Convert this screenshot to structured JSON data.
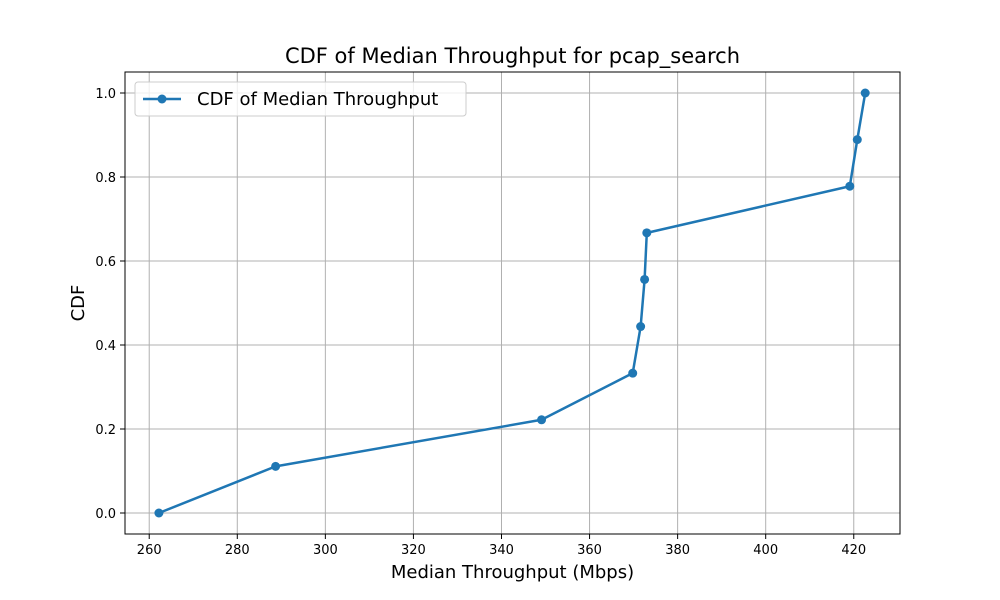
{
  "chart_data": {
    "type": "line",
    "title": "CDF of Median Throughput for pcap_search",
    "xlabel": "Median Throughput (Mbps)",
    "ylabel": "CDF",
    "xlim": [
      254.5,
      430.5
    ],
    "ylim": [
      -0.05,
      1.05
    ],
    "xticks": [
      260,
      280,
      300,
      320,
      340,
      360,
      380,
      400,
      420
    ],
    "yticks": [
      0.0,
      0.2,
      0.4,
      0.6,
      0.8,
      1.0
    ],
    "grid": true,
    "legend_position": "upper-left",
    "series": [
      {
        "name": "CDF of Median Throughput",
        "color": "#1f77b4",
        "marker": "circle",
        "x": [
          262.2,
          288.7,
          349.1,
          369.8,
          371.6,
          372.5,
          373.0,
          419.1,
          420.8,
          422.6
        ],
        "y": [
          0.0,
          0.111,
          0.222,
          0.333,
          0.444,
          0.556,
          0.667,
          0.778,
          0.889,
          1.0
        ]
      }
    ]
  }
}
